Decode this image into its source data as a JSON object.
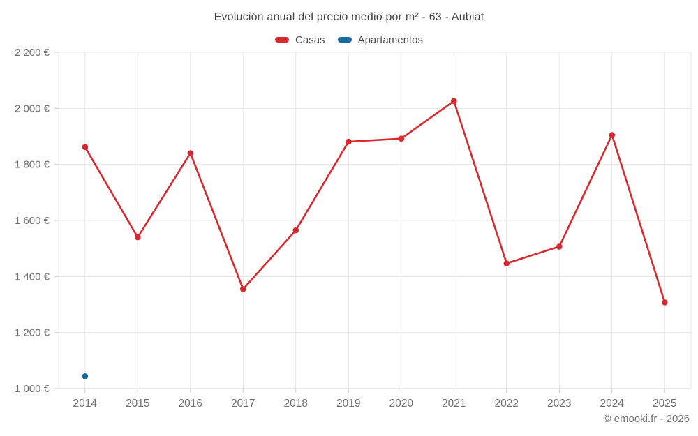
{
  "page": {
    "title": "Evolución anual del precio medio por m² - 63 - Aubiat",
    "footer": "© emooki.fr - 2026"
  },
  "legend": {
    "items": [
      {
        "label": "Casas",
        "color": "#d9282e"
      },
      {
        "label": "Apartamentos",
        "color": "#17699e"
      }
    ]
  },
  "chart_data": {
    "type": "line",
    "title": "Evolución anual del precio medio por m² - 63 - Aubiat",
    "categories": [
      "2014",
      "2015",
      "2016",
      "2017",
      "2018",
      "2019",
      "2020",
      "2021",
      "2022",
      "2023",
      "2024",
      "2025"
    ],
    "series": [
      {
        "name": "Casas",
        "color": "#d9282e",
        "values": [
          1862,
          1540,
          1840,
          1355,
          1565,
          1881,
          1892,
          2026,
          1447,
          1507,
          1905,
          1308
        ]
      },
      {
        "name": "Apartamentos",
        "color": "#17699e",
        "values": [
          1044,
          null,
          null,
          null,
          null,
          null,
          null,
          null,
          null,
          null,
          null,
          null
        ]
      }
    ],
    "ylim": [
      1000,
      2200
    ],
    "y_ticks": [
      {
        "value": 1000,
        "label": "1 000 €"
      },
      {
        "value": 1200,
        "label": "1 200 €"
      },
      {
        "value": 1400,
        "label": "1 400 €"
      },
      {
        "value": 1600,
        "label": "1 600 €"
      },
      {
        "value": 1800,
        "label": "1 800 €"
      },
      {
        "value": 2000,
        "label": "2 000 €"
      },
      {
        "value": 2200,
        "label": "2 200 €"
      }
    ],
    "ylabel": "",
    "xlabel": "",
    "grid": true,
    "legend_position": "top",
    "colors": {
      "grid": "#e8e8e8",
      "axis": "#cccccc",
      "tick_label": "#6f6f6f"
    }
  }
}
